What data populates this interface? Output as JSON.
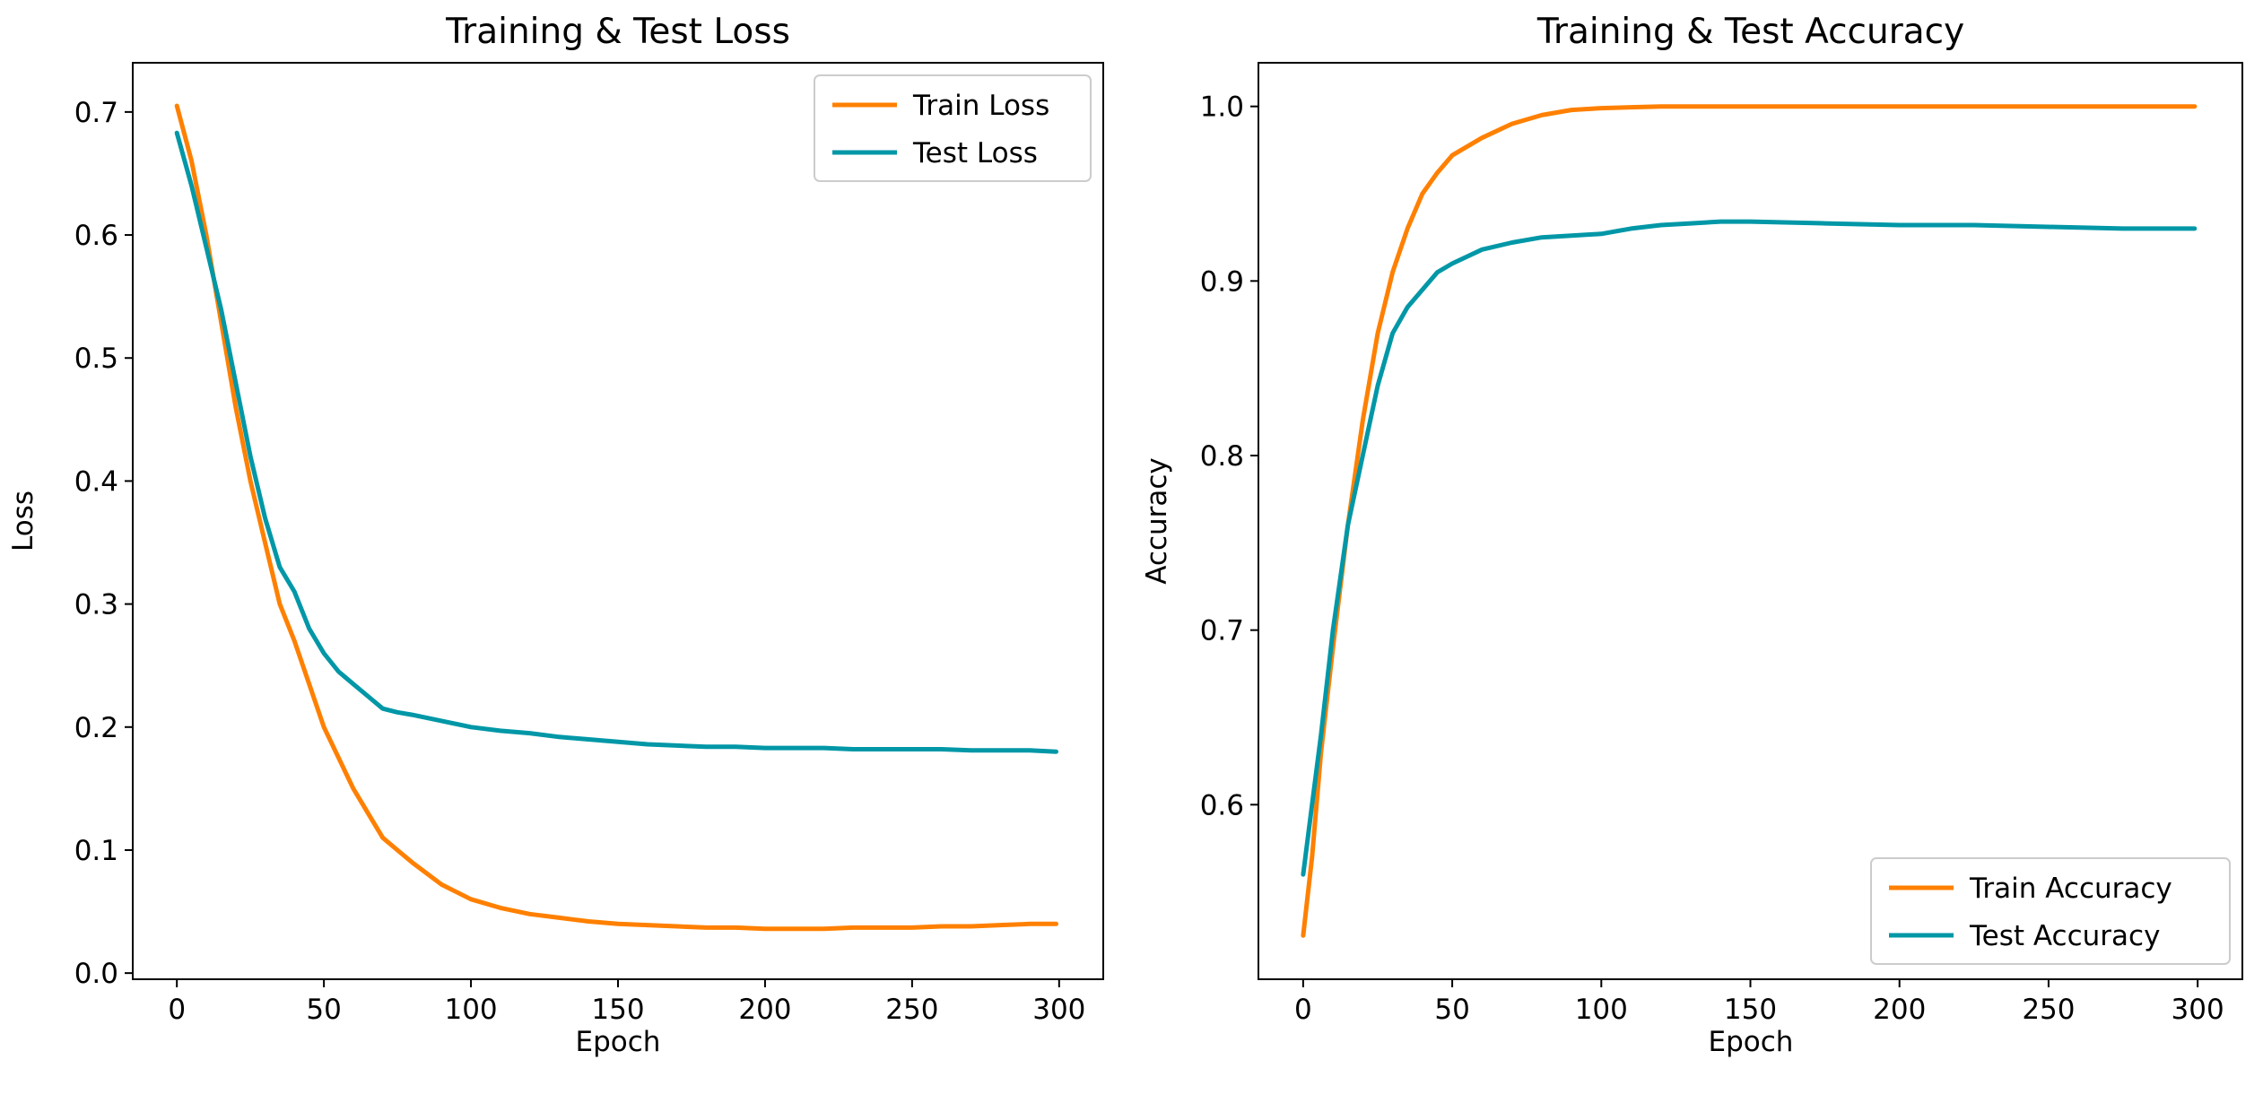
{
  "chart_data": [
    {
      "type": "line",
      "title": "Training & Test Loss",
      "xlabel": "Epoch",
      "ylabel": "Loss",
      "xlim": [
        -15,
        315
      ],
      "ylim": [
        -0.005,
        0.74
      ],
      "xticks": [
        0,
        50,
        100,
        150,
        200,
        250,
        300
      ],
      "xtick_labels": [
        "0",
        "50",
        "100",
        "150",
        "200",
        "250",
        "300"
      ],
      "yticks": [
        0.0,
        0.1,
        0.2,
        0.3,
        0.4,
        0.5,
        0.6,
        0.7
      ],
      "ytick_labels": [
        "0.0",
        "0.1",
        "0.2",
        "0.3",
        "0.4",
        "0.5",
        "0.6",
        "0.7"
      ],
      "grid": false,
      "legend_position": "top-right",
      "series": [
        {
          "name": "Train Loss",
          "color": "#ff8000",
          "x": [
            0,
            5,
            10,
            15,
            20,
            25,
            30,
            35,
            40,
            45,
            50,
            55,
            60,
            65,
            70,
            75,
            80,
            90,
            100,
            110,
            120,
            130,
            140,
            150,
            160,
            170,
            180,
            190,
            200,
            210,
            220,
            230,
            240,
            250,
            260,
            270,
            280,
            290,
            299
          ],
          "y": [
            0.705,
            0.66,
            0.6,
            0.53,
            0.46,
            0.4,
            0.35,
            0.3,
            0.27,
            0.235,
            0.2,
            0.175,
            0.15,
            0.13,
            0.11,
            0.1,
            0.09,
            0.072,
            0.06,
            0.053,
            0.048,
            0.045,
            0.042,
            0.04,
            0.039,
            0.038,
            0.037,
            0.037,
            0.036,
            0.036,
            0.036,
            0.037,
            0.037,
            0.037,
            0.038,
            0.038,
            0.039,
            0.04,
            0.04
          ]
        },
        {
          "name": "Test Loss",
          "color": "#0097a7",
          "x": [
            0,
            5,
            10,
            15,
            20,
            25,
            30,
            35,
            40,
            45,
            50,
            55,
            60,
            65,
            70,
            75,
            80,
            90,
            100,
            110,
            120,
            130,
            140,
            150,
            160,
            170,
            180,
            190,
            200,
            210,
            220,
            230,
            240,
            250,
            260,
            270,
            280,
            290,
            299
          ],
          "y": [
            0.683,
            0.64,
            0.59,
            0.54,
            0.48,
            0.42,
            0.37,
            0.33,
            0.31,
            0.28,
            0.26,
            0.245,
            0.235,
            0.225,
            0.215,
            0.212,
            0.21,
            0.205,
            0.2,
            0.197,
            0.195,
            0.192,
            0.19,
            0.188,
            0.186,
            0.185,
            0.184,
            0.184,
            0.183,
            0.183,
            0.183,
            0.182,
            0.182,
            0.182,
            0.182,
            0.181,
            0.181,
            0.181,
            0.18
          ]
        }
      ]
    },
    {
      "type": "line",
      "title": "Training & Test Accuracy",
      "xlabel": "Epoch",
      "ylabel": "Accuracy",
      "xlim": [
        -15,
        315
      ],
      "ylim": [
        0.5,
        1.025
      ],
      "xticks": [
        0,
        50,
        100,
        150,
        200,
        250,
        300
      ],
      "xtick_labels": [
        "0",
        "50",
        "100",
        "150",
        "200",
        "250",
        "300"
      ],
      "yticks": [
        0.6,
        0.7,
        0.8,
        0.9,
        1.0
      ],
      "ytick_labels": [
        "0.6",
        "0.7",
        "0.8",
        "0.9",
        "1.0"
      ],
      "grid": false,
      "legend_position": "bottom-right",
      "series": [
        {
          "name": "Train Accuracy",
          "color": "#ff8000",
          "x": [
            0,
            3,
            6,
            10,
            15,
            20,
            25,
            30,
            35,
            40,
            45,
            50,
            60,
            70,
            80,
            90,
            100,
            110,
            120,
            130,
            140,
            150,
            175,
            200,
            225,
            250,
            275,
            299
          ],
          "y": [
            0.525,
            0.57,
            0.63,
            0.69,
            0.76,
            0.82,
            0.87,
            0.905,
            0.93,
            0.95,
            0.962,
            0.972,
            0.982,
            0.99,
            0.995,
            0.998,
            0.999,
            0.9995,
            1.0,
            1.0,
            1.0,
            1.0,
            1.0,
            1.0,
            1.0,
            1.0,
            1.0,
            1.0
          ]
        },
        {
          "name": "Test Accuracy",
          "color": "#0097a7",
          "x": [
            0,
            3,
            6,
            10,
            15,
            20,
            25,
            30,
            35,
            40,
            45,
            50,
            60,
            70,
            80,
            90,
            100,
            110,
            120,
            130,
            140,
            150,
            175,
            200,
            225,
            250,
            275,
            299
          ],
          "y": [
            0.56,
            0.6,
            0.64,
            0.7,
            0.76,
            0.8,
            0.84,
            0.87,
            0.885,
            0.895,
            0.905,
            0.91,
            0.918,
            0.922,
            0.925,
            0.926,
            0.927,
            0.93,
            0.932,
            0.933,
            0.934,
            0.934,
            0.933,
            0.932,
            0.932,
            0.931,
            0.93,
            0.93
          ]
        }
      ]
    }
  ]
}
